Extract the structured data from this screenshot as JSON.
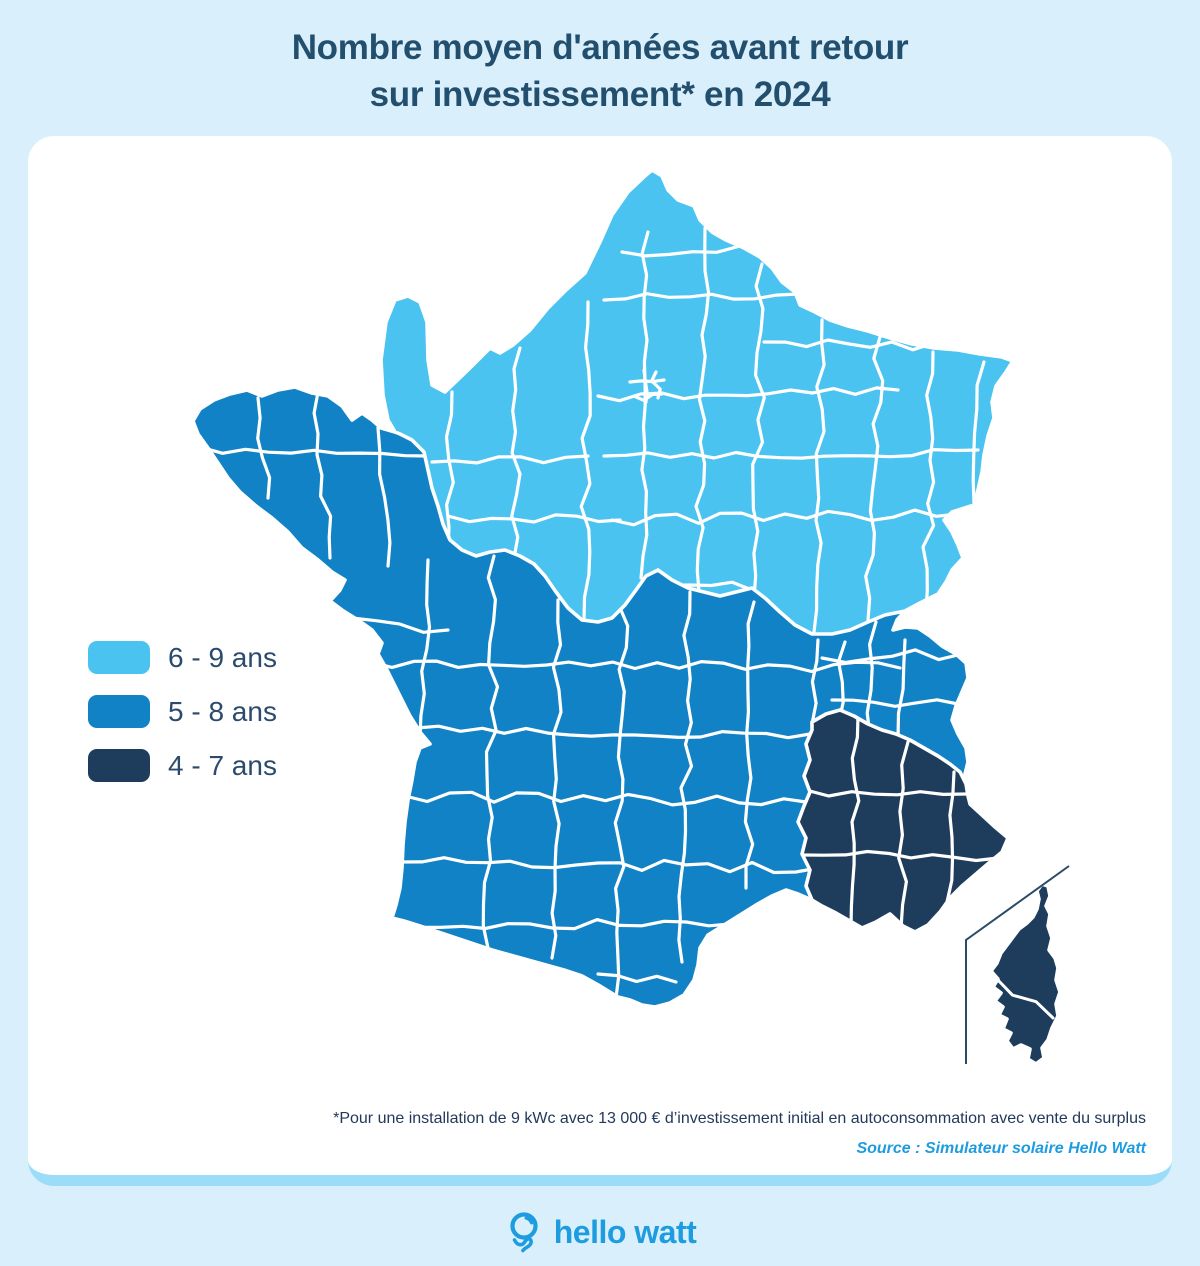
{
  "title": {
    "line1": "Nombre moyen d'années avant retour",
    "line2": "sur investissement* en 2024"
  },
  "colors": {
    "background": "#D9EFFB",
    "card": "#FFFFFF",
    "card_bottom_band": "#9BDCF8",
    "title_text": "#234F6E",
    "legend_text": "#2B4B6D",
    "footnote_text": "#22395B",
    "accent_blue": "#1E9CE0",
    "inset_line": "#2B4A66",
    "border_white": "#FFFFFF"
  },
  "legend": {
    "items": [
      {
        "label": "6 - 9 ans",
        "color": "#4AC3F1",
        "zone": "north-northeast"
      },
      {
        "label": "5 - 8 ans",
        "color": "#1182C5",
        "zone": "west-center-southwest"
      },
      {
        "label": "4 - 7 ans",
        "color": "#1E3C5C",
        "zone": "southeast-and-corsica"
      }
    ]
  },
  "map_data": {
    "type": "choropleth",
    "region": "France (departments) with Corsica inset",
    "metric": "Nombre moyen d'années avant retour sur investissement en 2024",
    "unit": "ans",
    "classes": [
      {
        "range": "6 - 9 ans",
        "color": "#4AC3F1",
        "area": "northern half of mainland France"
      },
      {
        "range": "5 - 8 ans",
        "color": "#1182C5",
        "area": "Brittany, west, center and southwest"
      },
      {
        "range": "4 - 7 ans",
        "color": "#1E3C5C",
        "area": "southeastern France and Corsica"
      }
    ]
  },
  "footnote": "*Pour une installation de 9 kWc avec 13 000 € d’investissement initial en autoconsommation avec vente du surplus",
  "source": "Source : Simulateur solaire Hello Watt",
  "logo": {
    "text": "hello watt"
  }
}
